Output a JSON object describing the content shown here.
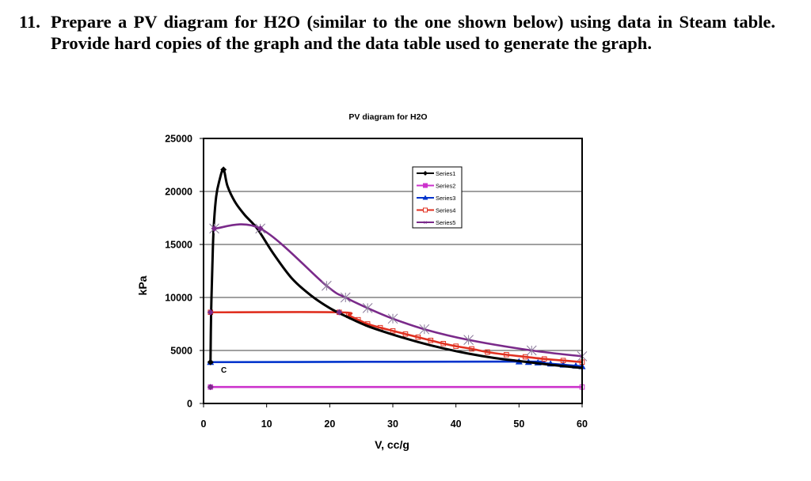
{
  "question": {
    "number": "11.",
    "text": "Prepare a PV diagram for H2O (similar to the one shown below) using data in Steam table. Provide hard copies of the graph and the data table used to generate the graph."
  },
  "chart_data": {
    "type": "line",
    "title": "PV diagram for H2O",
    "xlabel": "V, cc/g",
    "ylabel": "kPa",
    "xlim": [
      0,
      60
    ],
    "ylim": [
      0,
      25000
    ],
    "x_ticks": [
      "0",
      "10",
      "20",
      "30",
      "40",
      "50",
      "60"
    ],
    "y_ticks": [
      "0",
      "5000",
      "10000",
      "15000",
      "20000",
      "25000"
    ],
    "grid": "horizontal",
    "legend_position": "top-right",
    "annotations": [
      {
        "text": "C",
        "x": 3.0,
        "y": 3400
      }
    ],
    "series": [
      {
        "name": "Series1",
        "color": "#000000",
        "marker": "diamond",
        "x": [
          1.1,
          1.2,
          1.4,
          1.6,
          2.0,
          2.5,
          3.16,
          3.8,
          5.0,
          6.5,
          8.5,
          11,
          14,
          17,
          20,
          23,
          26,
          30,
          34,
          38,
          42,
          46,
          50,
          55,
          60
        ],
        "y": [
          3900,
          8500,
          13000,
          16500,
          19500,
          21000,
          22064,
          20500,
          19000,
          17800,
          16500,
          14200,
          11800,
          10200,
          9000,
          8100,
          7300,
          6500,
          5800,
          5200,
          4700,
          4300,
          4000,
          3650,
          3350
        ]
      },
      {
        "name": "Series2",
        "color": "#CC33CC",
        "marker": "square",
        "x": [
          1.1,
          60
        ],
        "y": [
          1550,
          1550
        ]
      },
      {
        "name": "Series3",
        "color": "#0033CC",
        "marker": "triangle",
        "x": [
          1.1,
          50,
          51.5,
          53,
          55,
          57,
          59,
          60
        ],
        "y": [
          3900,
          3950,
          3900,
          3850,
          3750,
          3650,
          3550,
          3500
        ]
      },
      {
        "name": "Series4",
        "color": "#E03020",
        "marker": "square",
        "x": [
          1.1,
          21.5,
          23,
          24.5,
          26,
          28,
          30,
          32,
          34,
          36,
          38,
          40,
          42.5,
          45,
          48,
          51,
          54,
          57,
          60
        ],
        "y": [
          8600,
          8600,
          8300,
          7900,
          7500,
          7150,
          6850,
          6550,
          6250,
          5950,
          5650,
          5400,
          5150,
          4850,
          4600,
          4400,
          4200,
          4050,
          3900
        ]
      },
      {
        "name": "Series5",
        "color": "#7A2A8A",
        "marker": "x",
        "x": [
          1.7,
          9.0,
          19.5,
          22.5,
          26,
          30,
          35,
          42,
          52,
          60
        ],
        "y": [
          16500,
          16500,
          11100,
          10000,
          9000,
          8000,
          7000,
          6000,
          5000,
          4450
        ]
      }
    ]
  }
}
